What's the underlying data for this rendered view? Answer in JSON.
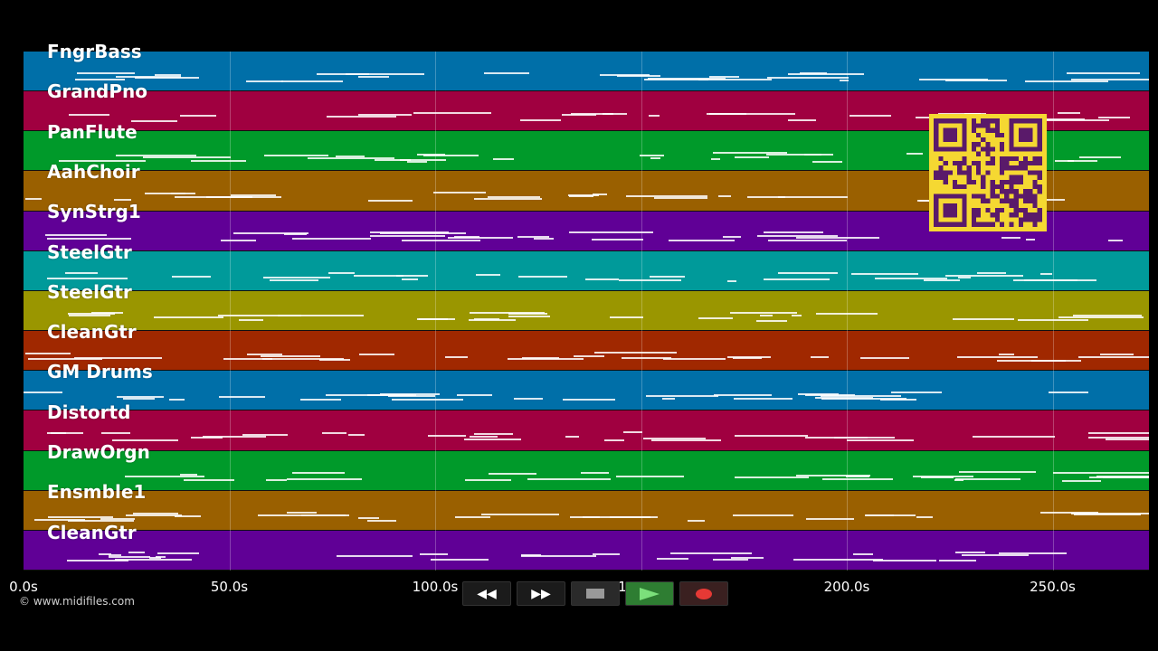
{
  "tracks": [
    {
      "name": "FngrBass",
      "color": "#006fa8"
    },
    {
      "name": "GrandPno",
      "color": "#a00040"
    },
    {
      "name": "PanFlute",
      "color": "#009a2a"
    },
    {
      "name": "AahChoir",
      "color": "#9a6000"
    },
    {
      "name": "SynStrg1",
      "color": "#600096"
    },
    {
      "name": "SteelGtr",
      "color": "#009a9a"
    },
    {
      "name": "SteelGtr",
      "color": "#9a9600"
    },
    {
      "name": "CleanGtr",
      "color": "#a02800"
    },
    {
      "name": "GM Drums",
      "color": "#006fa8"
    },
    {
      "name": "Distortd",
      "color": "#a00040"
    },
    {
      "name": "DrawOrgn",
      "color": "#009a2a"
    },
    {
      "name": "Ensmble1",
      "color": "#9a6000"
    },
    {
      "name": "CleanGtr",
      "color": "#600096"
    }
  ],
  "time_axis": {
    "ticks": [
      "0.0s",
      "50.0s",
      "100.0s",
      "150.0s",
      "200.0s",
      "250.0s"
    ]
  },
  "copyright": "© www.midifiles.com",
  "transport": {
    "rewind": "rewind-button",
    "fast_forward": "fast-forward-button",
    "stop": "stop-button",
    "play": "play-button",
    "record": "record-button"
  }
}
